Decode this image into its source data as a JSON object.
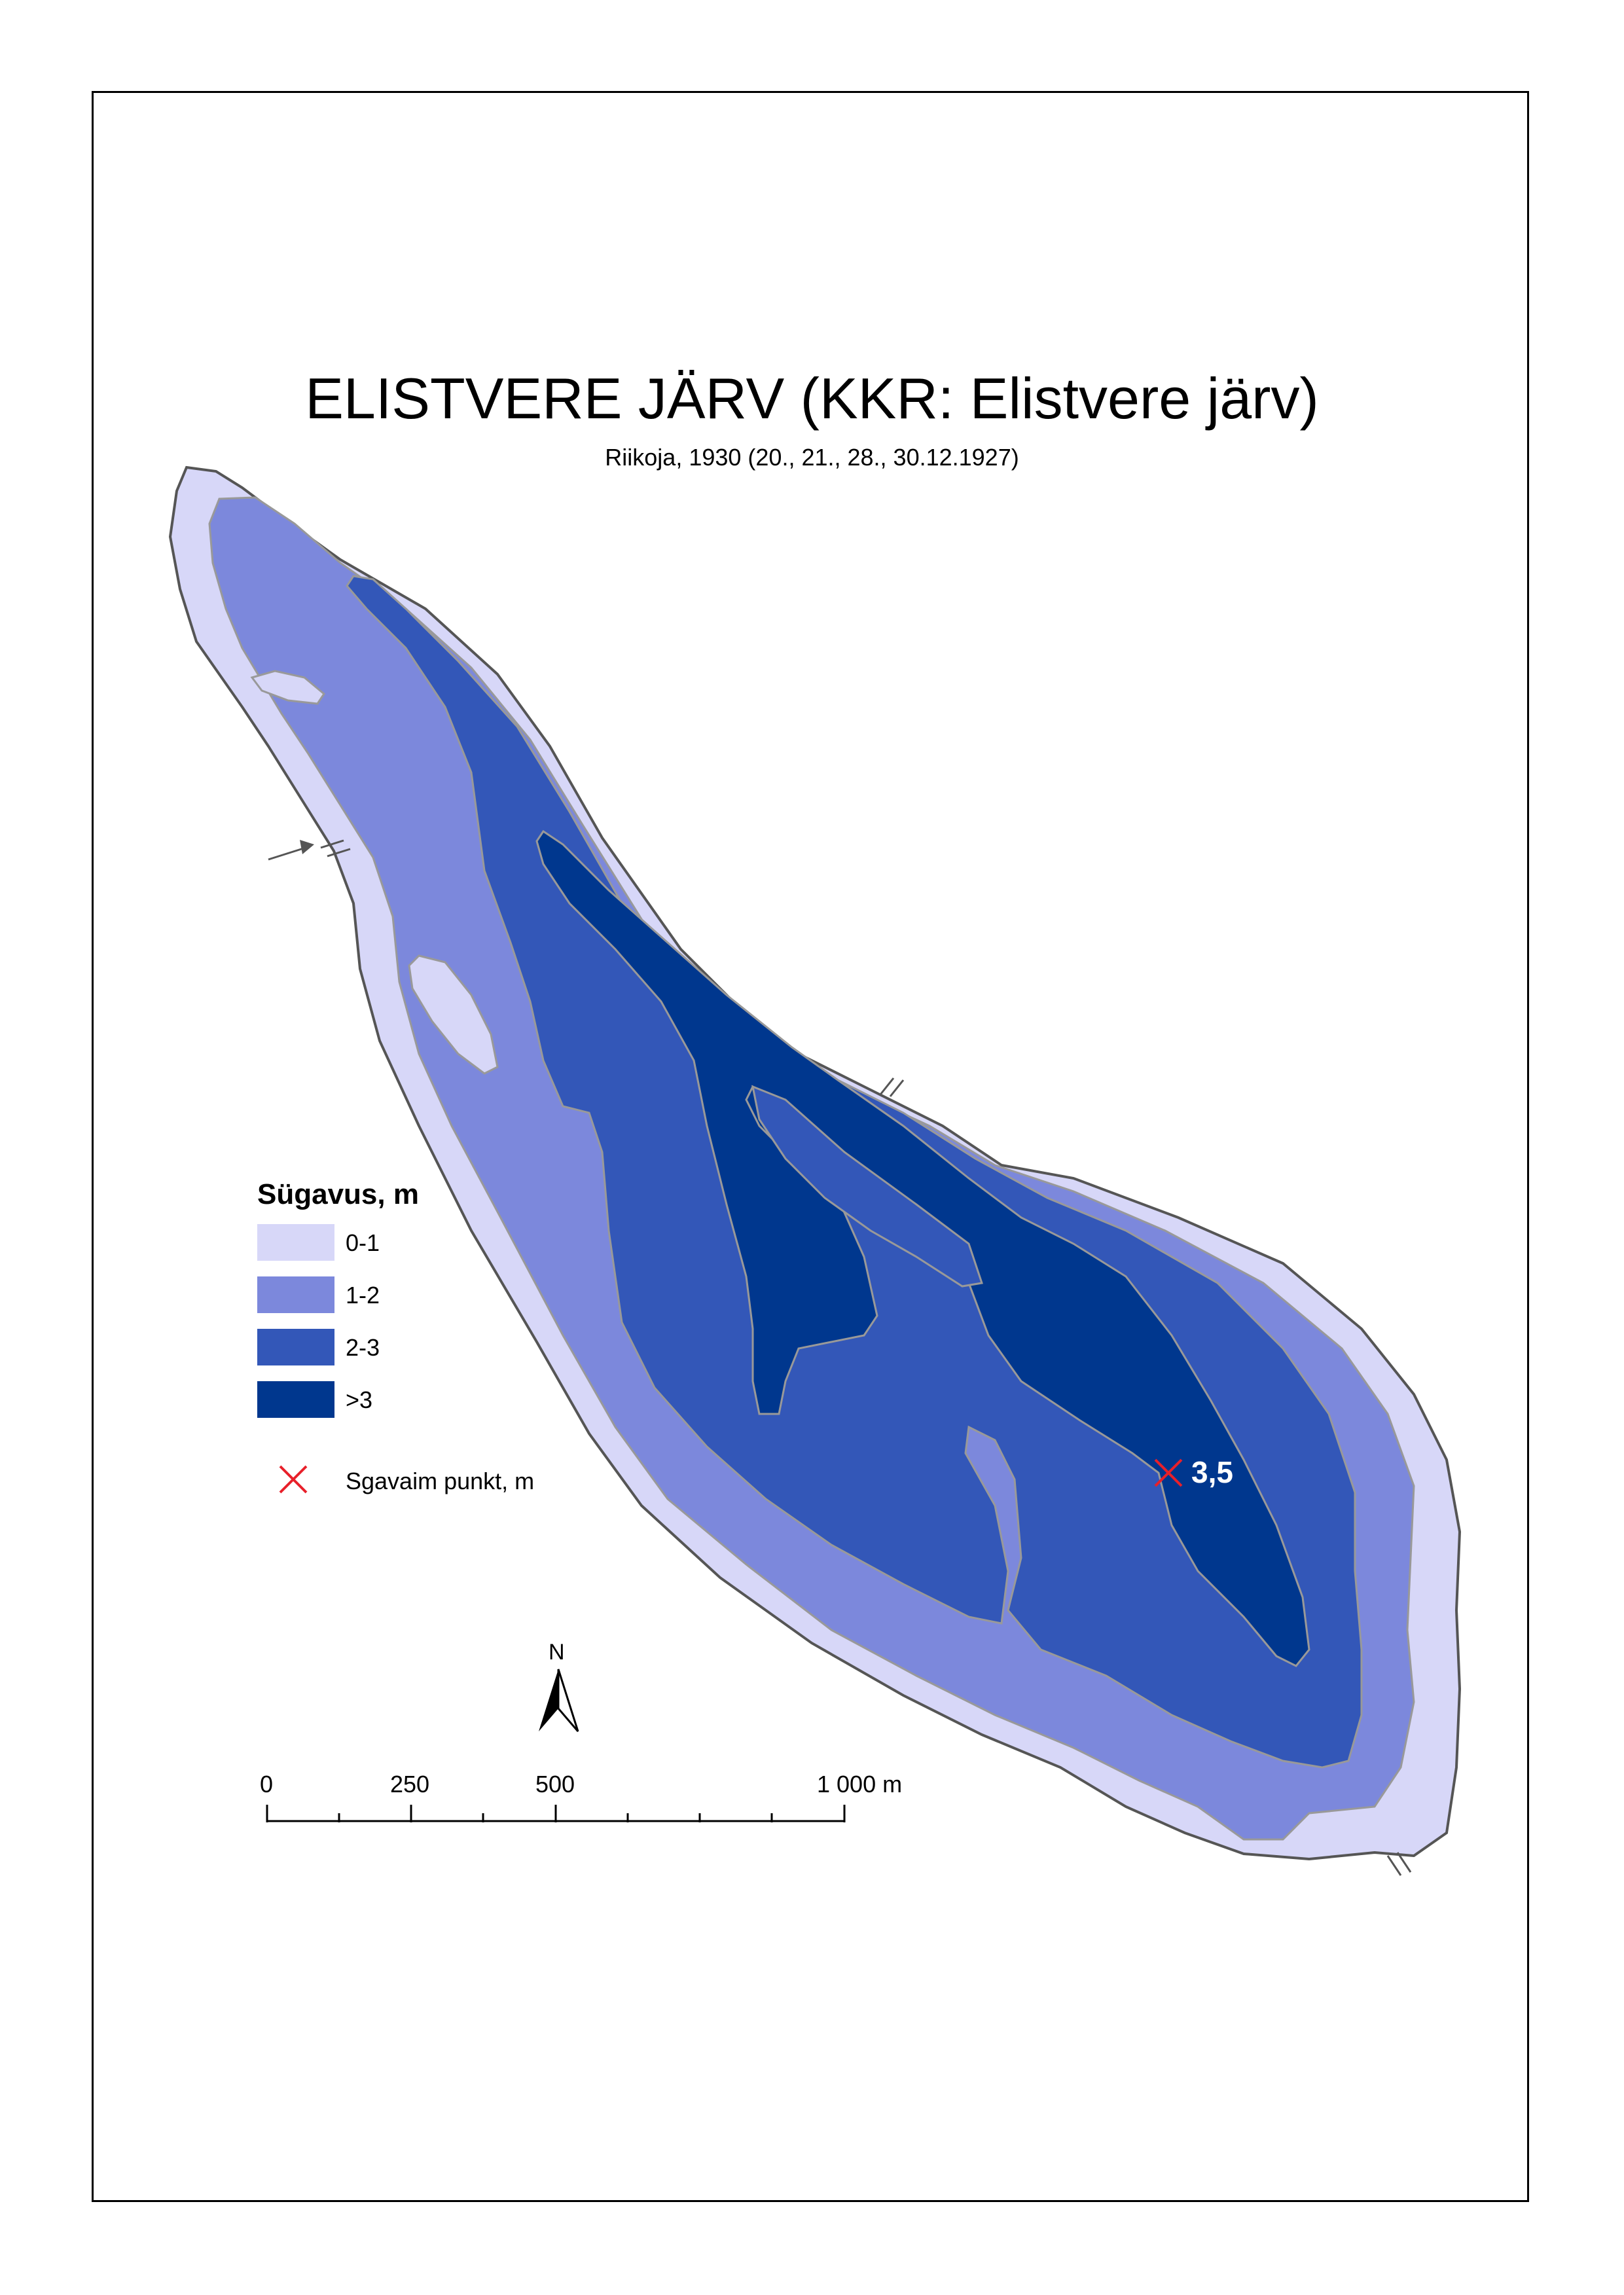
{
  "map": {
    "title": "ELISTVERE JÄRV (KKR: Elistvere järv)",
    "subtitle": "Riikoja, 1930 (20., 21., 28., 30.12.1927)"
  },
  "legend": {
    "title": "Sügavus, m",
    "classes": [
      {
        "label": "0-1",
        "color": "#d7d7f8"
      },
      {
        "label": "1-2",
        "color": "#7c88dc"
      },
      {
        "label": "2-3",
        "color": "#3357b8"
      },
      {
        "label": ">3",
        "color": "#00378e"
      }
    ],
    "deepest_point_label": "Sgavaim punkt, m",
    "deepest_point_color": "#e8202a"
  },
  "deepest_point": {
    "value": "3,5"
  },
  "north_arrow": {
    "letter": "N",
    "icon": "north-arrow-icon"
  },
  "scale_bar": {
    "labels": [
      "0",
      "250",
      "500",
      "1 000 m"
    ]
  },
  "colors": {
    "shoreline": "#555555",
    "contour": "#9a9a9a",
    "frame": "#000000"
  }
}
